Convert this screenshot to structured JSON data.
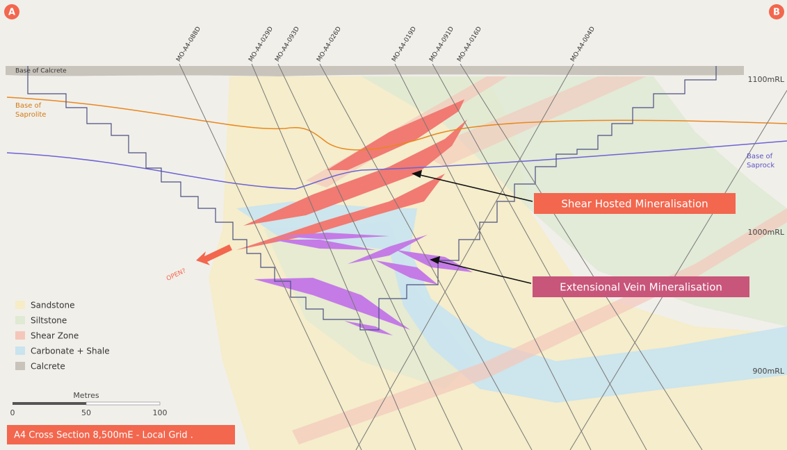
{
  "corners": {
    "left": "A",
    "right": "B"
  },
  "drillholes": [
    "MO-A4-088D",
    "MO-A4-029D",
    "MO-A4-093D",
    "MO-A4-026D",
    "MO-A4-019D",
    "MO-A4-091D",
    "MO-A4-016D",
    "MO-A4-004D"
  ],
  "boundaries": {
    "calcrete": "Base of Calcrete",
    "saprolite": "Base of Saprolite",
    "saprock": "Base of Saprock"
  },
  "elevations": [
    "1100mRL",
    "1000mRL",
    "900mRL"
  ],
  "callouts": [
    "Shear Hosted Mineralisation",
    "Extensional Vein Mineralisation"
  ],
  "open_label": "OPEN?",
  "legend": [
    "Sandstone",
    "Siltstone",
    "Shear Zone",
    "Carbonate + Shale",
    "Calcrete"
  ],
  "scale_bar": {
    "title": "Metres",
    "ticks": [
      0,
      50,
      100
    ]
  },
  "caption": "A4 Cross Section 8,500mE - Local Grid ."
}
